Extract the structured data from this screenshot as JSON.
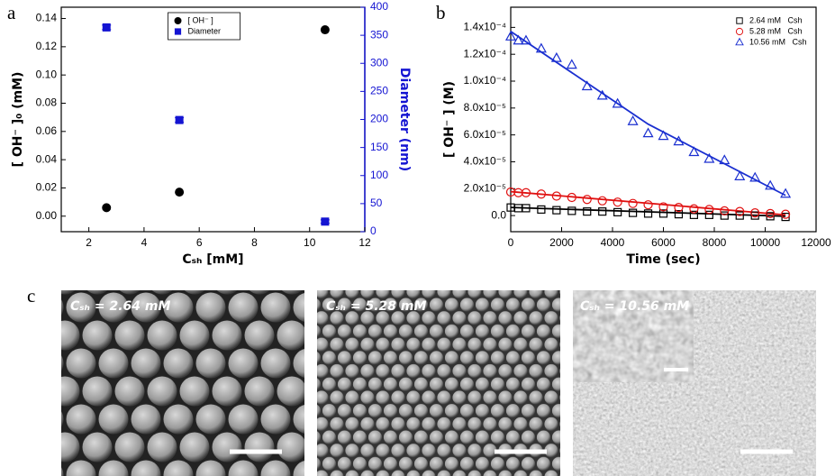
{
  "panel_labels": [
    "a",
    "b",
    "c"
  ],
  "chart_data": [
    {
      "type": "scatter",
      "xlabel": "Cₛₕ [mM]",
      "ylabel": "[ OH⁻ ]₀ (mM)",
      "y2label": "Diameter (nm)",
      "x": [
        2.64,
        5.28,
        10.56
      ],
      "xlim": [
        1,
        12
      ],
      "xticks": [
        2,
        4,
        6,
        8,
        10,
        12
      ],
      "ylim": [
        -0.011,
        0.148
      ],
      "yticks": [
        {
          "value": 0,
          "label": "0.00"
        },
        0.02,
        0.04,
        0.06,
        0.08,
        {
          "value": 0.1,
          "label": "0.10"
        },
        0.12,
        0.14
      ],
      "y2lim": [
        0,
        400
      ],
      "y2ticks": [
        0,
        50,
        100,
        150,
        200,
        250,
        300,
        350,
        400
      ],
      "y2color": "#1414d2",
      "legend": "upper center",
      "series": [
        {
          "name": "[ OH⁻ ]",
          "color": "#000000",
          "marker": "circle",
          "values": [
            0.006,
            0.017,
            0.132
          ]
        },
        {
          "name": "Diameter",
          "color": "#1414d2",
          "marker": "square",
          "axis": "y2",
          "values": [
            364,
            199,
            18
          ],
          "errors": [
            4,
            4,
            3
          ]
        }
      ]
    },
    {
      "type": "scatter",
      "xlabel": "Time (sec)",
      "ylabel": "[ OH⁻ ] (M)",
      "x": [
        0,
        300,
        600,
        1200,
        1800,
        2400,
        3000,
        3600,
        4200,
        4800,
        5400,
        6000,
        6600,
        7200,
        7800,
        8400,
        9000,
        9600,
        10200,
        10800
      ],
      "xlim": [
        0,
        12000
      ],
      "xticks": [
        0,
        2000,
        4000,
        6000,
        8000,
        10000,
        12000
      ],
      "ylim": [
        -1.2e-05,
        0.000155
      ],
      "yticks": [
        {
          "value": 0,
          "label": "0.0"
        },
        {
          "value": 2e-05,
          "label": "2.0x10⁻⁵"
        },
        {
          "value": 4e-05,
          "label": "4.0x10⁻⁵"
        },
        {
          "value": 6e-05,
          "label": "6.0x10⁻⁵"
        },
        {
          "value": 8e-05,
          "label": "8.0x10⁻⁵"
        },
        {
          "value": 0.0001,
          "label": "1.0x10⁻⁴"
        },
        {
          "value": 0.00012,
          "label": "1.2x10⁻⁴"
        },
        {
          "value": 0.00014,
          "label": "1.4x10⁻⁴"
        }
      ],
      "legend": "upper right",
      "series": [
        {
          "name": "2.64 mM   Csh",
          "color": "#000000",
          "marker": "open-square",
          "values": [
            6e-06,
            5.5e-06,
            5.5e-06,
            4.5e-06,
            4e-06,
            3.5e-06,
            3e-06,
            3e-06,
            2.5e-06,
            2e-06,
            1.5e-06,
            1.5e-06,
            1e-06,
            5e-07,
            5e-07,
            0,
            0,
            0,
            -5e-07,
            -1e-06
          ]
        },
        {
          "name": "5.28 mM   Csh",
          "color": "#e01010",
          "marker": "open-circle",
          "values": [
            1.75e-05,
            1.7e-05,
            1.7e-05,
            1.6e-05,
            1.45e-05,
            1.35e-05,
            1.2e-05,
            1.1e-05,
            1e-05,
            9e-06,
            8e-06,
            6.5e-06,
            6e-06,
            5e-06,
            4.5e-06,
            3.5e-06,
            3e-06,
            2e-06,
            1.5e-06,
            1e-06
          ]
        },
        {
          "name": "10.56 mM   Csh",
          "color": "#1a2fd0",
          "marker": "open-triangle",
          "values": [
            0.000133,
            0.00013,
            0.00013,
            0.000124,
            0.000117,
            0.000112,
            9.6e-05,
            8.9e-05,
            8.3e-05,
            7e-05,
            6.1e-05,
            5.9e-05,
            5.5e-05,
            4.7e-05,
            4.2e-05,
            4.1e-05,
            2.9e-05,
            2.8e-05,
            2.2e-05,
            1.6e-05
          ]
        }
      ],
      "fits": [
        {
          "color": "#000000",
          "x": [
            0,
            10800
          ],
          "values": [
            6e-06,
            -5e-07
          ]
        },
        {
          "color": "#e01010",
          "x": [
            0,
            10800
          ],
          "values": [
            1.78e-05,
            5e-07
          ]
        },
        {
          "color": "#1a2fd0",
          "x": [
            0,
            5400,
            10800
          ],
          "values": [
            0.000137,
            6.8e-05,
            1.5e-05
          ]
        }
      ]
    }
  ],
  "images": [
    {
      "label": "Cₛₕ = 2.64 mM"
    },
    {
      "label": "Cₛₕ = 5.28 mM"
    },
    {
      "label": "Cₛₕ = 10.56 mM"
    }
  ]
}
